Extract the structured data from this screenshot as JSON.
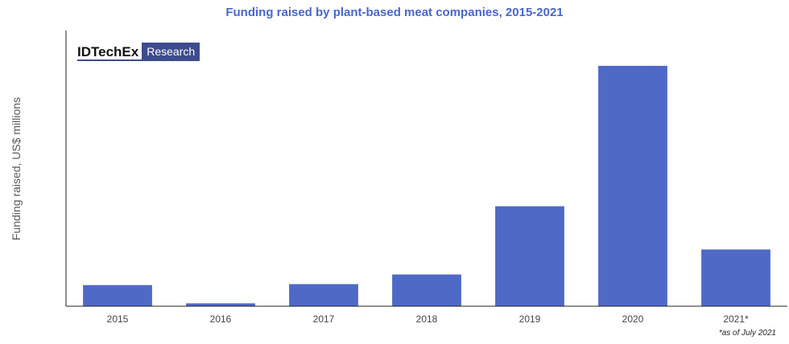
{
  "chart_data": {
    "type": "bar",
    "title": "Funding raised by plant-based meat companies, 2015-2021",
    "ylabel": "Funding raised, US$ millions",
    "xlabel": "",
    "categories": [
      "2015",
      "2016",
      "2017",
      "2018",
      "2019",
      "2020",
      "2021*"
    ],
    "values": [
      110,
      15,
      115,
      165,
      520,
      1250,
      295
    ],
    "ylim": [
      0,
      1400
    ],
    "grid": false,
    "color": "#4f69c6",
    "footnote": "*as of July 2021"
  },
  "logo": {
    "main": "IDTechEx",
    "sub": "Research"
  }
}
